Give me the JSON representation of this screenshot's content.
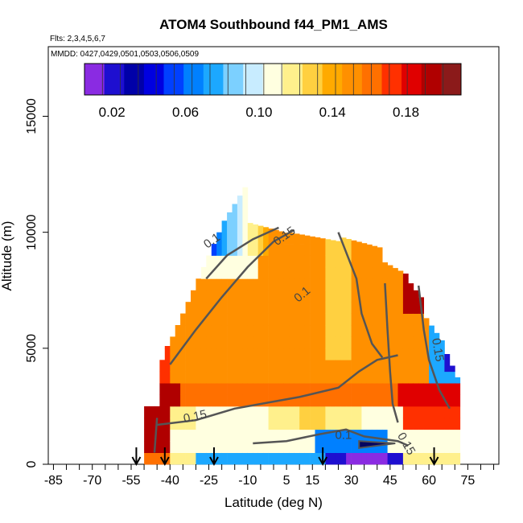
{
  "chart_data": {
    "type": "heatmap",
    "title": "ATOM4 Southbound f44_PM1_AMS",
    "flights_label": "Flts: 2,3,4,5,6,7",
    "dates_label": "MMDD: 0427,0429,0501,0503,0506,0509",
    "xlabel": "Latitude (deg N)",
    "ylabel": "Altitude (m)",
    "xlim": [
      -87,
      87
    ],
    "ylim": [
      0,
      18000
    ],
    "x_ticks": [
      "-85",
      "-70",
      "-55",
      "-40",
      "-25",
      "-10",
      "5",
      "15",
      "30",
      "45",
      "60",
      "75"
    ],
    "x_tick_values": [
      -85,
      -70,
      -55,
      -40,
      -25,
      -10,
      5,
      15,
      30,
      45,
      60,
      75
    ],
    "y_ticks": [
      "0",
      "5000",
      "10000",
      "15000"
    ],
    "y_tick_values": [
      0,
      5000,
      10000,
      15000
    ],
    "colorbar": {
      "range": [
        0.005,
        0.21
      ],
      "tick_labels": [
        "0.02",
        "0.06",
        "0.10",
        "0.14",
        "0.18"
      ],
      "tick_values": [
        0.02,
        0.06,
        0.1,
        0.14,
        0.18
      ],
      "colors": [
        "#8a2be2",
        "#1e0fd0",
        "#0000a8",
        "#0000e0",
        "#0040ff",
        "#0080ff",
        "#1ca8ff",
        "#7cd0ff",
        "#c8ecff",
        "#ffffe0",
        "#fff08c",
        "#ffd040",
        "#ffaa00",
        "#ff9000",
        "#ff7000",
        "#ff3000",
        "#e00000",
        "#b00000",
        "#8b1a1a"
      ]
    },
    "contour_labels": [
      "0.1",
      "0.15",
      "0.15",
      "0.15",
      "0.1",
      "0.15",
      "0.1"
    ],
    "profile_markers_lat": [
      -53,
      -42,
      -23,
      19,
      62
    ]
  }
}
